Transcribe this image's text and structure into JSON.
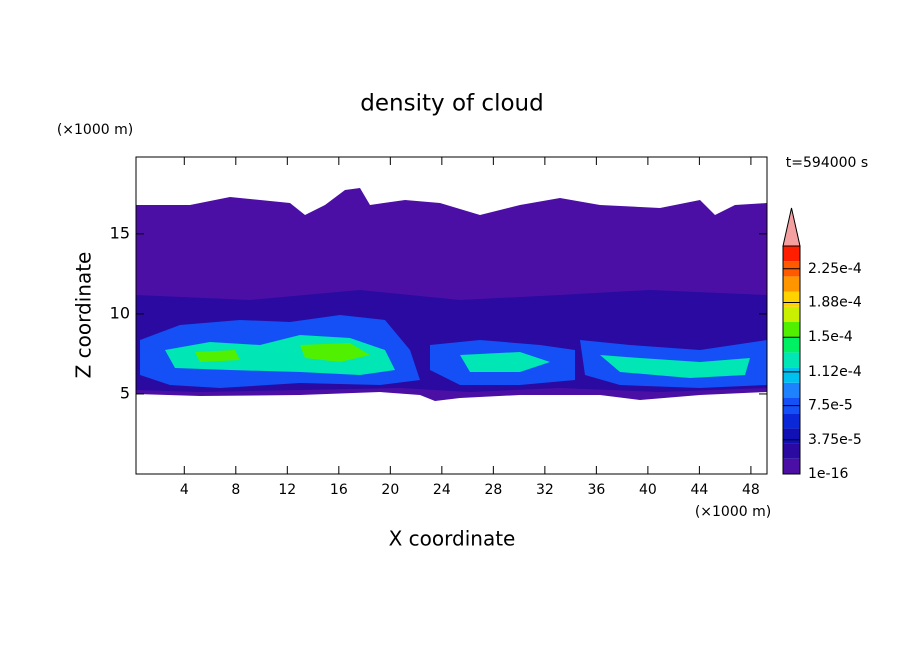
{
  "chart_data": {
    "type": "contour",
    "title": "density of cloud",
    "xlabel": "X coordinate",
    "ylabel": "Z coordinate",
    "x_unit": "(×1000 m)",
    "y_unit": "(×1000 m)",
    "time_label": "t=594000 s",
    "xlim": [
      0.25,
      49.25
    ],
    "ylim": [
      0,
      19.8
    ],
    "xticks": [
      4,
      8,
      12,
      16,
      20,
      24,
      28,
      32,
      36,
      40,
      44,
      48
    ],
    "yticks": [
      5,
      10,
      15
    ],
    "colorbar": {
      "clim": [
        0,
        0.00025
      ],
      "ticks": [
        {
          "value": 1e-16,
          "label": "1e-16"
        },
        {
          "value": 3.75e-05,
          "label": "3.75e-5"
        },
        {
          "value": 7.5e-05,
          "label": "7.5e-5"
        },
        {
          "value": 0.000112,
          "label": "1.12e-4"
        },
        {
          "value": 0.00015,
          "label": "1.5e-4"
        },
        {
          "value": 0.000188,
          "label": "1.88e-4"
        },
        {
          "value": 0.000225,
          "label": "2.25e-4"
        }
      ],
      "colors": [
        "#4b0fa6",
        "#2a0aa0",
        "#1010b4",
        "#0a28d8",
        "#1450f5",
        "#1e82ff",
        "#00c0f0",
        "#00e6b4",
        "#00f064",
        "#50f000",
        "#c8f000",
        "#ffd200",
        "#ff9600",
        "#ff5a00",
        "#ff1e00"
      ],
      "extend_color": "#f4a0a0"
    }
  }
}
